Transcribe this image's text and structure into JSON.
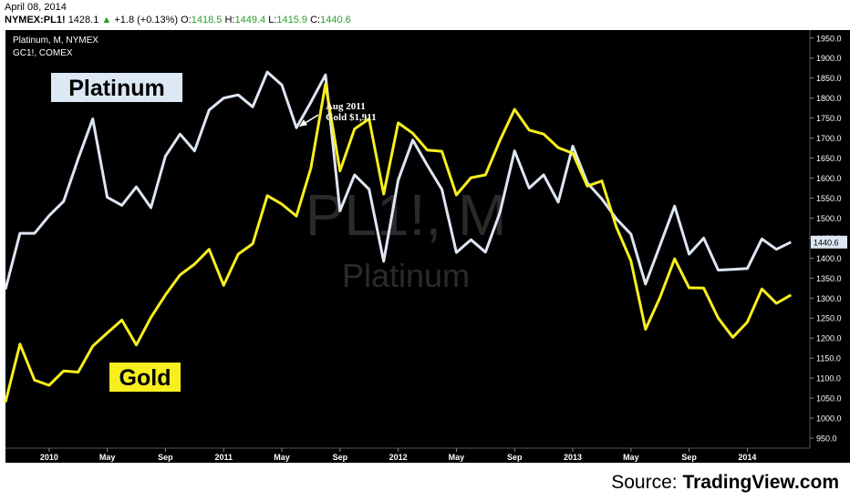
{
  "header": {
    "date": "April 08, 2014",
    "symbol": "NYMEX:PL1!",
    "last": "1428.1",
    "change_arrow": "▲",
    "change": "+1.8 (+0.13%)",
    "open_label": "O:",
    "open": "1418.5",
    "high_label": "H:",
    "high": "1449.4",
    "low_label": "L:",
    "low": "1415.9",
    "close_label": "C:",
    "close": "1440.6"
  },
  "source": {
    "prefix": "Source: ",
    "name": "TradingView.com"
  },
  "colors": {
    "background": "#000000",
    "platinum": "#dde6f2",
    "gold": "#f7ef1e",
    "axis_text": "#ffffff",
    "up": "#2a9d2a"
  },
  "chart_data": {
    "type": "line",
    "legend_lines": [
      "Platinum, M, NYMEX",
      "GC1!, COMEX"
    ],
    "watermark": {
      "symbol": "PL1!, M",
      "name": "Platinum"
    },
    "labels": {
      "platinum": "Platinum",
      "gold": "Gold"
    },
    "annotation": {
      "lines": [
        "Aug 2011",
        "Gold $1,911"
      ],
      "at_month": 20
    },
    "last_price_label": "1440.6",
    "x_ticks": [
      {
        "label": "2010",
        "month": 3
      },
      {
        "label": "May",
        "month": 7
      },
      {
        "label": "Sep",
        "month": 11
      },
      {
        "label": "2011",
        "month": 15
      },
      {
        "label": "May",
        "month": 19
      },
      {
        "label": "Sep",
        "month": 23
      },
      {
        "label": "2012",
        "month": 27
      },
      {
        "label": "May",
        "month": 31
      },
      {
        "label": "Sep",
        "month": 35
      },
      {
        "label": "2013",
        "month": 39
      },
      {
        "label": "May",
        "month": 43
      },
      {
        "label": "Sep",
        "month": 47
      },
      {
        "label": "2014",
        "month": 51
      }
    ],
    "y_ticks": [
      "950.0",
      "1000.0",
      "1050.0",
      "1100.0",
      "1150.0",
      "1200.0",
      "1250.0",
      "1300.0",
      "1350.0",
      "1400.0",
      "1450.0",
      "1500.0",
      "1550.0",
      "1600.0",
      "1650.0",
      "1700.0",
      "1750.0",
      "1800.0",
      "1850.0",
      "1900.0",
      "1950.0"
    ],
    "ylim": [
      925,
      1970
    ],
    "x_range": [
      0,
      55.3
    ],
    "series": [
      {
        "name": "Platinum",
        "values": [
          1322,
          1462,
          1462,
          1506,
          1542,
          1648,
          1748,
          1552,
          1532,
          1578,
          1526,
          1655,
          1710,
          1668,
          1770,
          1800,
          1808,
          1778,
          1865,
          1833,
          1726,
          1790,
          1858,
          1518,
          1608,
          1572,
          1392,
          1595,
          1695,
          1632,
          1572,
          1414,
          1446,
          1415,
          1515,
          1668,
          1575,
          1608,
          1540,
          1680,
          1588,
          1548,
          1498,
          1460,
          1335,
          1432,
          1530,
          1410,
          1450,
          1370,
          1372,
          1374,
          1448,
          1422,
          1440
        ]
      },
      {
        "name": "Gold",
        "values": [
          1040,
          1185,
          1095,
          1082,
          1118,
          1115,
          1180,
          1213,
          1245,
          1183,
          1252,
          1308,
          1358,
          1385,
          1422,
          1332,
          1410,
          1436,
          1556,
          1535,
          1505,
          1625,
          1835,
          1618,
          1723,
          1748,
          1560,
          1738,
          1712,
          1670,
          1667,
          1558,
          1601,
          1608,
          1695,
          1772,
          1720,
          1710,
          1676,
          1662,
          1580,
          1593,
          1477,
          1393,
          1222,
          1302,
          1398,
          1326,
          1325,
          1250,
          1202,
          1240,
          1323,
          1287,
          1308
        ]
      }
    ]
  }
}
